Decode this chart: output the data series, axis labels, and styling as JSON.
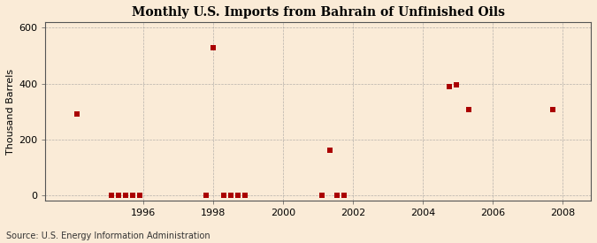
{
  "title": "Monthly U.S. Imports from Bahrain of Unfinished Oils",
  "ylabel": "Thousand Barrels",
  "source": "Source: U.S. Energy Information Administration",
  "background_color": "#faebd7",
  "plot_background_color": "#faebd7",
  "marker_color": "#aa0000",
  "marker_size": 25,
  "xlim_start": 1993.2,
  "xlim_end": 2008.8,
  "ylim": [
    -18,
    620
  ],
  "yticks": [
    0,
    200,
    400,
    600
  ],
  "xticks": [
    1996,
    1998,
    2000,
    2002,
    2004,
    2006,
    2008
  ],
  "data_points": [
    {
      "year": 1994.1,
      "value": 290
    },
    {
      "year": 1995.1,
      "value": 0
    },
    {
      "year": 1995.3,
      "value": 0
    },
    {
      "year": 1995.5,
      "value": 0
    },
    {
      "year": 1995.7,
      "value": 0
    },
    {
      "year": 1995.9,
      "value": 0
    },
    {
      "year": 1997.8,
      "value": 0
    },
    {
      "year": 1998.0,
      "value": 527
    },
    {
      "year": 1998.3,
      "value": 0
    },
    {
      "year": 1998.5,
      "value": 0
    },
    {
      "year": 1998.7,
      "value": 0
    },
    {
      "year": 1998.9,
      "value": 0
    },
    {
      "year": 2001.1,
      "value": 0
    },
    {
      "year": 2001.35,
      "value": 162
    },
    {
      "year": 2001.55,
      "value": 0
    },
    {
      "year": 2001.75,
      "value": 0
    },
    {
      "year": 2004.75,
      "value": 390
    },
    {
      "year": 2004.95,
      "value": 395
    },
    {
      "year": 2005.3,
      "value": 308
    },
    {
      "year": 2007.7,
      "value": 308
    }
  ]
}
